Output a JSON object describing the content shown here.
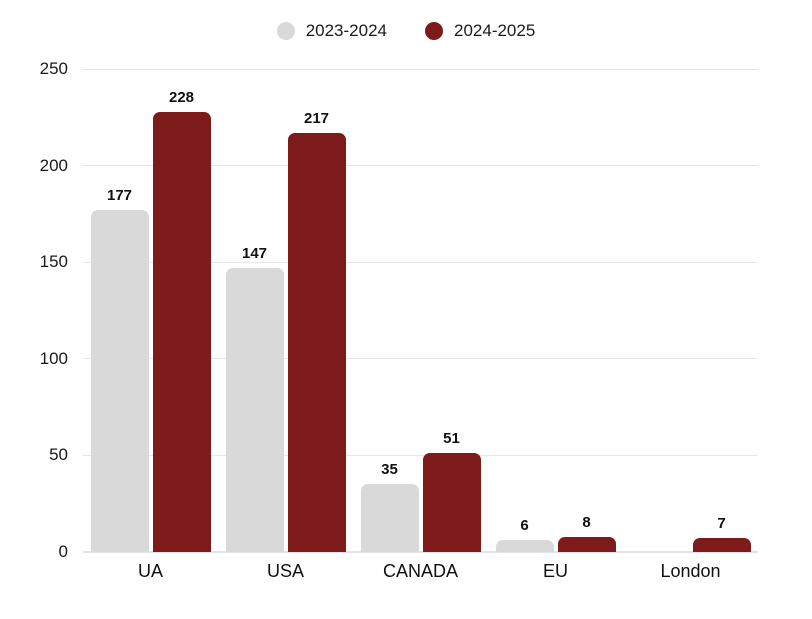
{
  "legend": {
    "items": [
      {
        "label": "2023-2024",
        "color": "#d9d9d9"
      },
      {
        "label": "2024-2025",
        "color": "#7d1a1a"
      }
    ]
  },
  "chart_data": {
    "type": "bar",
    "title": "",
    "categories": [
      "UA",
      "USA",
      "CANADA",
      "EU",
      "London"
    ],
    "series": [
      {
        "name": "2023-2024",
        "color": "#d9d9d9",
        "values": [
          177,
          147,
          35,
          6,
          null
        ]
      },
      {
        "name": "2024-2025",
        "color": "#7d1a1a",
        "values": [
          228,
          217,
          51,
          8,
          7
        ]
      }
    ],
    "ylim": [
      0,
      250
    ],
    "yticks": [
      0,
      50,
      100,
      150,
      200,
      250
    ],
    "grid": true,
    "legend_position": "top",
    "value_labels": true
  },
  "colors": {
    "background": "#ffffff",
    "grid": "#e7e7e7",
    "text": "#1a1a1a"
  }
}
